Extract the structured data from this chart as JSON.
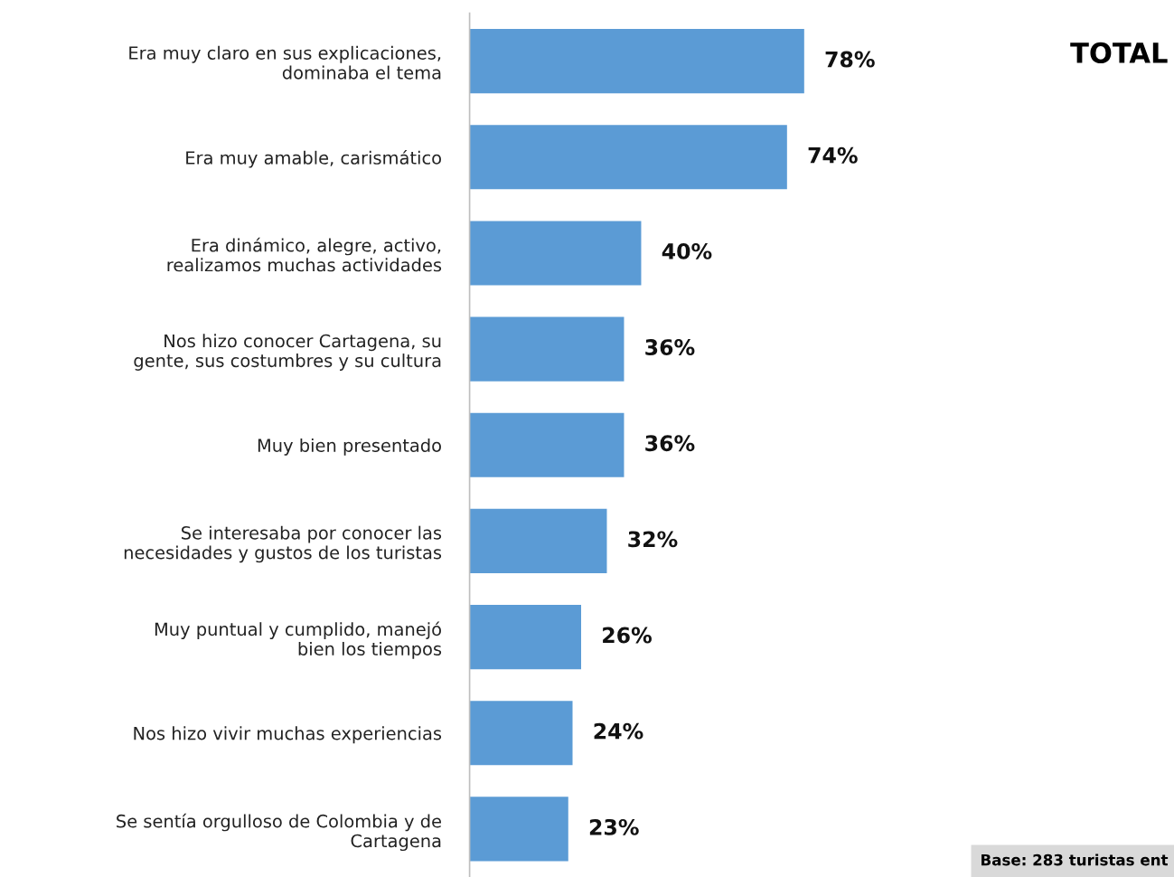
{
  "chart_data": {
    "type": "bar",
    "orientation": "horizontal",
    "title": "TOTAL",
    "categories": [
      "Era muy claro en sus explicaciones,\ndominaba el tema",
      "Era muy amable, carismático",
      "Era dinámico, alegre, activo,\nrealizamos muchas actividades",
      "Nos hizo conocer Cartagena, su\ngente, sus costumbres y su cultura",
      "Muy bien presentado",
      "Se interesaba por conocer las\nnecesidades y gustos de los turistas",
      "Muy puntual y cumplido, manejó\nbien los tiempos",
      "Nos hizo vivir muchas experiencias",
      "Se sentía orgulloso de Colombia y de\nCartagena"
    ],
    "values": [
      78,
      74,
      40,
      36,
      36,
      32,
      26,
      24,
      23
    ],
    "value_labels": [
      "78%",
      "74%",
      "40%",
      "36%",
      "36%",
      "32%",
      "26%",
      "24%",
      "23%"
    ],
    "color": "#5b9bd5",
    "annotations": [
      "Base: 283 turistas ent"
    ]
  }
}
